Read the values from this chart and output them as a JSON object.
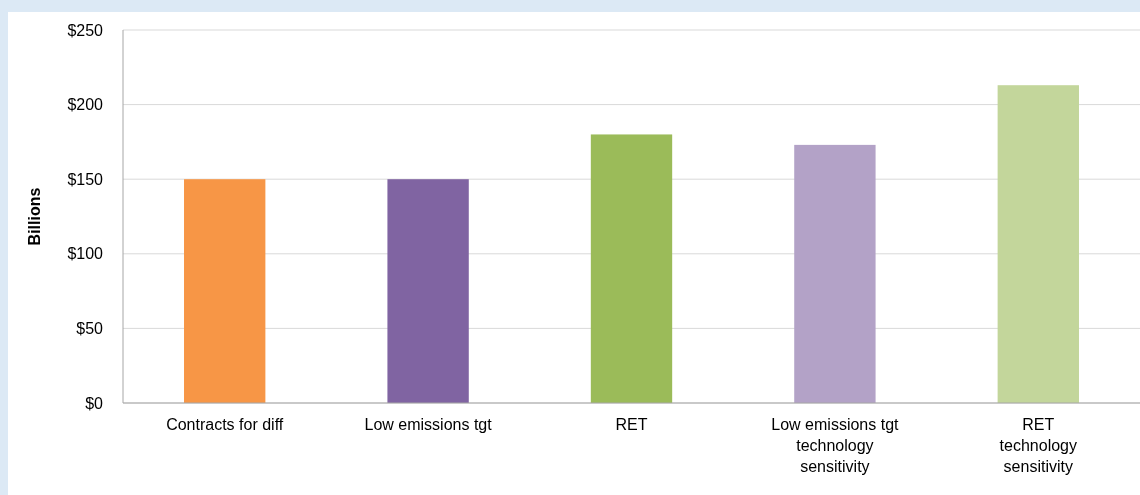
{
  "chart_data": {
    "type": "bar",
    "ylabel": "Billions",
    "categories": [
      "Contracts for diff",
      "Low emissions tgt",
      "RET",
      "Low emissions tgt\ntechnology\nsensitivity",
      "RET\ntechnology\nsensitivity"
    ],
    "values": [
      150,
      150,
      180,
      173,
      213
    ],
    "colors": [
      "#f79646",
      "#8064a2",
      "#9bbb59",
      "#b3a2c7",
      "#c3d69b"
    ],
    "ylim": [
      0,
      250
    ],
    "yticks": [
      {
        "value": 0,
        "label": "$0"
      },
      {
        "value": 50,
        "label": "$50"
      },
      {
        "value": 100,
        "label": "$100"
      },
      {
        "value": 150,
        "label": "$150"
      },
      {
        "value": 200,
        "label": "$200"
      },
      {
        "value": 250,
        "label": "$250"
      }
    ],
    "grid": "y"
  }
}
